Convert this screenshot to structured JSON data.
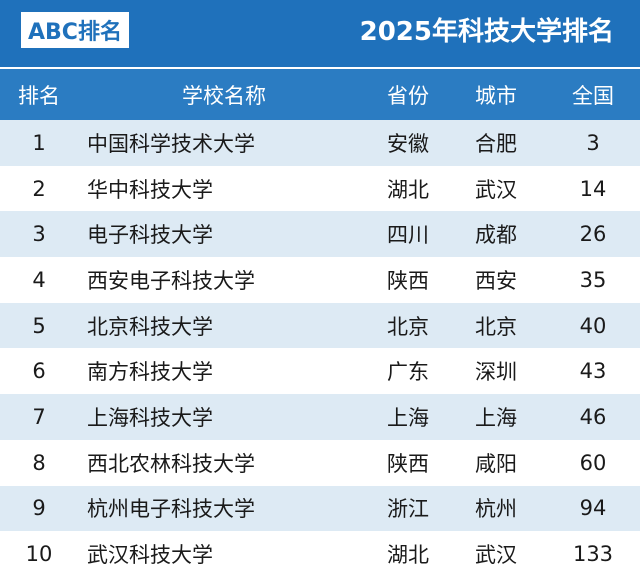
{
  "header": {
    "logo_text": "ABC排名",
    "title": "2025年科技大学排名"
  },
  "table": {
    "columns": [
      "排名",
      "学校名称",
      "省份",
      "城市",
      "全国"
    ],
    "rows": [
      {
        "rank": "1",
        "name": "中国科学技术大学",
        "province": "安徽",
        "city": "合肥",
        "national": "3"
      },
      {
        "rank": "2",
        "name": "华中科技大学",
        "province": "湖北",
        "city": "武汉",
        "national": "14"
      },
      {
        "rank": "3",
        "name": "电子科技大学",
        "province": "四川",
        "city": "成都",
        "national": "26"
      },
      {
        "rank": "4",
        "name": "西安电子科技大学",
        "province": "陕西",
        "city": "西安",
        "national": "35"
      },
      {
        "rank": "5",
        "name": "北京科技大学",
        "province": "北京",
        "city": "北京",
        "national": "40"
      },
      {
        "rank": "6",
        "name": "南方科技大学",
        "province": "广东",
        "city": "深圳",
        "national": "43"
      },
      {
        "rank": "7",
        "name": "上海科技大学",
        "province": "上海",
        "city": "上海",
        "national": "46"
      },
      {
        "rank": "8",
        "name": "西北农林科技大学",
        "province": "陕西",
        "city": "咸阳",
        "national": "60"
      },
      {
        "rank": "9",
        "name": "杭州电子科技大学",
        "province": "浙江",
        "city": "杭州",
        "national": "94"
      },
      {
        "rank": "10",
        "name": "武汉科技大学",
        "province": "湖北",
        "city": "武汉",
        "national": "133"
      }
    ]
  },
  "colors": {
    "banner": "#1f71bb",
    "header_row": "#2b7cc2",
    "row_alt": "#ddeaf4"
  }
}
